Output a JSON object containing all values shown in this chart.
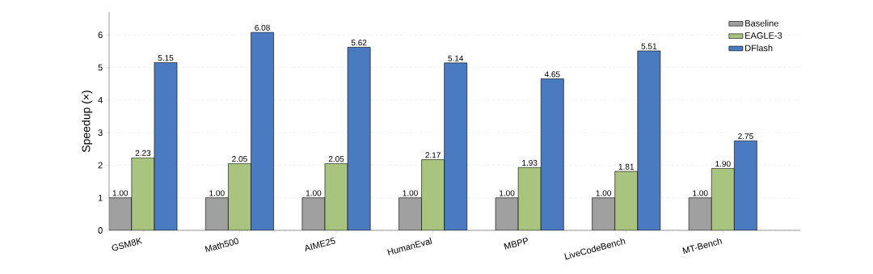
{
  "chart_data": {
    "type": "bar",
    "ylabel": "Speedup (×)",
    "categories": [
      "GSM8K",
      "Math500",
      "AIME25",
      "HumanEval",
      "MBPP",
      "LiveCodeBench",
      "MT-Bench"
    ],
    "series": [
      {
        "name": "Baseline",
        "color": "#a0a0a0",
        "values": [
          1.0,
          1.0,
          1.0,
          1.0,
          1.0,
          1.0,
          1.0
        ],
        "value_labels": [
          "1.00",
          "1.00",
          "1.00",
          "1.00",
          "1.00",
          "1.00",
          "1.00"
        ]
      },
      {
        "name": "EAGLE-3",
        "color": "#a9c47f",
        "values": [
          2.23,
          2.05,
          2.05,
          2.17,
          1.93,
          1.81,
          1.9
        ],
        "value_labels": [
          "2.23",
          "2.05",
          "2.05",
          "2.17",
          "1.93",
          "1.81",
          "1.90"
        ]
      },
      {
        "name": "DFlash",
        "color": "#4a7abf",
        "values": [
          5.15,
          6.08,
          5.62,
          5.14,
          4.65,
          5.51,
          2.75
        ],
        "value_labels": [
          "5.15",
          "6.08",
          "5.62",
          "5.14",
          "4.65",
          "5.51",
          "2.75"
        ]
      }
    ],
    "ylim": [
      0,
      6.7
    ],
    "yticks": [
      0,
      1,
      2,
      3,
      4,
      5,
      6
    ],
    "grid": "y",
    "legend": "top right"
  }
}
